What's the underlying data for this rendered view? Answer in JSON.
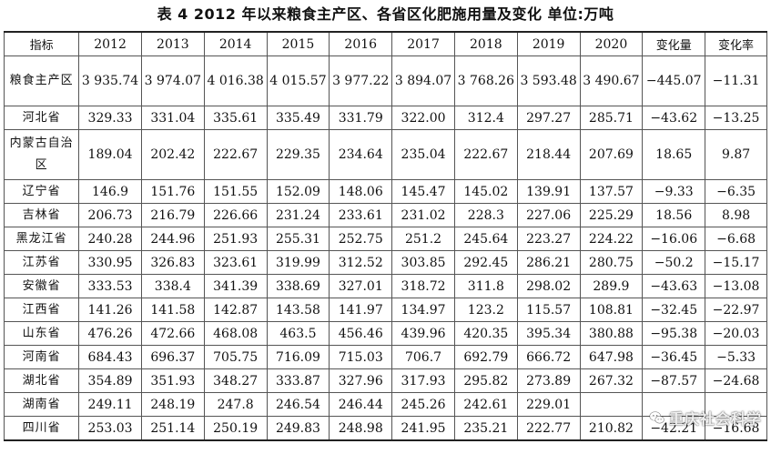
{
  "caption": "表 4  2012 年以来粮食主产区、各省区化肥施用量及变化  单位:万吨",
  "header": [
    "指标",
    "2012",
    "2013",
    "2014",
    "2015",
    "2016",
    "2017",
    "2018",
    "2019",
    "2020",
    "变化量",
    "变化率"
  ],
  "rows": [
    {
      "region": "粮食主产区",
      "values": [
        "3 935.74",
        "3 974.07",
        "4 016.38",
        "4 015.57",
        "3 977.22",
        "3 894.07",
        "3 768.26",
        "3 593.48",
        "3 490.67",
        "−445.07",
        "−11.31"
      ]
    },
    {
      "region": "河北省",
      "values": [
        "329.33",
        "331.04",
        "335.61",
        "335.49",
        "331.79",
        "322.00",
        "312.4",
        "297.27",
        "285.71",
        "−43.62",
        "−13.25"
      ]
    },
    {
      "region": "内蒙古自治区",
      "values": [
        "189.04",
        "202.42",
        "222.67",
        "229.35",
        "234.64",
        "235.04",
        "222.67",
        "218.44",
        "207.69",
        "18.65",
        "9.87"
      ]
    },
    {
      "region": "辽宁省",
      "values": [
        "146.9",
        "151.76",
        "151.55",
        "152.09",
        "148.06",
        "145.47",
        "145.02",
        "139.91",
        "137.57",
        "−9.33",
        "−6.35"
      ]
    },
    {
      "region": "吉林省",
      "values": [
        "206.73",
        "216.79",
        "226.66",
        "231.24",
        "233.61",
        "231.02",
        "228.3",
        "227.06",
        "225.29",
        "18.56",
        "8.98"
      ]
    },
    {
      "region": "黑龙江省",
      "values": [
        "240.28",
        "244.96",
        "251.93",
        "255.31",
        "252.75",
        "251.2",
        "245.64",
        "223.27",
        "224.22",
        "−16.06",
        "−6.68"
      ]
    },
    {
      "region": "江苏省",
      "values": [
        "330.95",
        "326.83",
        "323.61",
        "319.99",
        "312.52",
        "303.85",
        "292.45",
        "286.21",
        "280.75",
        "−50.2",
        "−15.17"
      ]
    },
    {
      "region": "安徽省",
      "values": [
        "333.53",
        "338.4",
        "341.39",
        "338.69",
        "327.01",
        "318.72",
        "311.8",
        "298.02",
        "289.9",
        "−43.63",
        "−13.08"
      ]
    },
    {
      "region": "江西省",
      "values": [
        "141.26",
        "141.58",
        "142.87",
        "143.58",
        "141.97",
        "134.97",
        "123.2",
        "115.57",
        "108.81",
        "−32.45",
        "−22.97"
      ]
    },
    {
      "region": "山东省",
      "values": [
        "476.26",
        "472.66",
        "468.08",
        "463.5",
        "456.46",
        "439.96",
        "420.35",
        "395.34",
        "380.88",
        "−95.38",
        "−20.03"
      ]
    },
    {
      "region": "河南省",
      "values": [
        "684.43",
        "696.37",
        "705.75",
        "716.09",
        "715.03",
        "706.7",
        "692.79",
        "666.72",
        "647.98",
        "−36.45",
        "−5.33"
      ]
    },
    {
      "region": "湖北省",
      "values": [
        "354.89",
        "351.93",
        "348.27",
        "333.87",
        "327.96",
        "317.93",
        "295.82",
        "273.89",
        "267.32",
        "−87.57",
        "−24.68"
      ]
    },
    {
      "region": "湖南省",
      "values": [
        "249.11",
        "248.19",
        "247.8",
        "246.54",
        "246.44",
        "245.26",
        "242.61",
        "229.01",
        "",
        "",
        ""
      ]
    },
    {
      "region": "四川省",
      "values": [
        "253.03",
        "251.14",
        "250.19",
        "249.83",
        "248.98",
        "241.95",
        "235.21",
        "222.77",
        "210.82",
        "−42.21",
        "−16.68"
      ]
    }
  ],
  "watermark": {
    "text": "重庆社会科学",
    "icon": "wechat-icon"
  }
}
